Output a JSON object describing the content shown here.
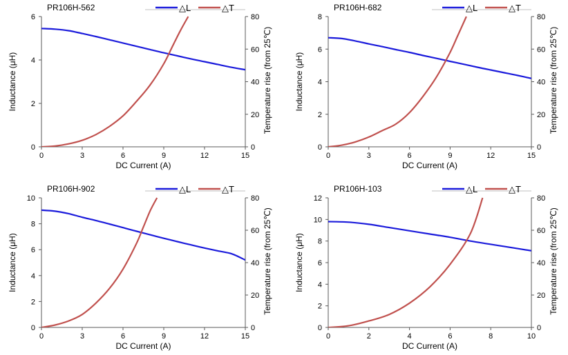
{
  "colors": {
    "inductance": "#1a1adb",
    "temperature": "#c0504d",
    "axis": "#595959",
    "frame": "#bfbfbf"
  },
  "legend": {
    "inductance_label": "△L",
    "temperature_label": "△T"
  },
  "chart_data": [
    {
      "type": "line",
      "title": "PR106H-562",
      "xlabel": "DC Current (A)",
      "ylabel": "Inductance (μH)",
      "y2label": "Temperature rise (from 25℃)",
      "xlim": [
        0,
        15
      ],
      "ylim": [
        0,
        6
      ],
      "y2lim": [
        0,
        80
      ],
      "xticks": [
        "0",
        "3",
        "6",
        "9",
        "12",
        "15"
      ],
      "yticks": [
        "0",
        "2",
        "4",
        "6"
      ],
      "y2ticks": [
        "0",
        "20",
        "40",
        "60",
        "80"
      ],
      "series": [
        {
          "name": "△L",
          "axis": "left",
          "x": [
            0,
            1,
            2,
            3,
            4,
            5,
            6,
            7,
            8,
            9,
            10,
            11,
            12,
            13,
            14,
            15
          ],
          "y": [
            5.45,
            5.42,
            5.35,
            5.22,
            5.08,
            4.93,
            4.78,
            4.63,
            4.48,
            4.33,
            4.19,
            4.05,
            3.92,
            3.79,
            3.66,
            3.55
          ]
        },
        {
          "name": "△T",
          "axis": "right",
          "x": [
            0,
            1,
            2,
            3,
            4,
            5,
            6,
            7,
            8,
            9,
            9.6,
            10.2,
            10.8
          ],
          "y": [
            0,
            0.5,
            1.8,
            4,
            7.5,
            12.5,
            19,
            28,
            38,
            51,
            61,
            71,
            80
          ]
        }
      ]
    },
    {
      "type": "line",
      "title": "PR106H-682",
      "xlabel": "DC Current (A)",
      "ylabel": "Inductance (μH)",
      "y2label": "Temperature rise (from 25℃)",
      "xlim": [
        0,
        15
      ],
      "ylim": [
        0,
        8
      ],
      "y2lim": [
        0,
        80
      ],
      "xticks": [
        "0",
        "3",
        "6",
        "9",
        "12",
        "15"
      ],
      "yticks": [
        "0",
        "2",
        "4",
        "6",
        "8"
      ],
      "y2ticks": [
        "0",
        "20",
        "40",
        "60",
        "80"
      ],
      "series": [
        {
          "name": "△L",
          "axis": "left",
          "x": [
            0,
            1,
            2,
            3,
            4,
            5,
            6,
            7,
            8,
            9,
            10,
            11,
            12,
            13,
            14,
            15
          ],
          "y": [
            6.7,
            6.65,
            6.5,
            6.32,
            6.15,
            5.97,
            5.8,
            5.61,
            5.43,
            5.25,
            5.07,
            4.89,
            4.72,
            4.55,
            4.38,
            4.2
          ]
        },
        {
          "name": "△T",
          "axis": "right",
          "x": [
            0,
            1,
            2,
            3,
            4,
            5,
            6,
            7,
            8,
            9,
            9.6,
            10.2
          ],
          "y": [
            0,
            1,
            3,
            6,
            10,
            14,
            21,
            31,
            43,
            58,
            69,
            80
          ]
        }
      ]
    },
    {
      "type": "line",
      "title": "PR106H-902",
      "xlabel": "DC Current (A)",
      "ylabel": "Inductance (μH)",
      "y2label": "Temperature rise (from 25℃)",
      "xlim": [
        0,
        15
      ],
      "ylim": [
        0,
        10
      ],
      "y2lim": [
        0,
        80
      ],
      "xticks": [
        "0",
        "3",
        "6",
        "9",
        "12",
        "15"
      ],
      "yticks": [
        "0",
        "2",
        "4",
        "6",
        "8",
        "10"
      ],
      "y2ticks": [
        "0",
        "20",
        "40",
        "60",
        "80"
      ],
      "series": [
        {
          "name": "△L",
          "axis": "left",
          "x": [
            0,
            1,
            2,
            3,
            4,
            5,
            6,
            7,
            8,
            9,
            10,
            11,
            12,
            13,
            14,
            15
          ],
          "y": [
            9.05,
            8.97,
            8.78,
            8.5,
            8.25,
            7.98,
            7.7,
            7.42,
            7.15,
            6.88,
            6.62,
            6.37,
            6.13,
            5.9,
            5.68,
            5.2
          ]
        },
        {
          "name": "△T",
          "axis": "right",
          "x": [
            0,
            1,
            2,
            3,
            4,
            5,
            6,
            7,
            7.5,
            8,
            8.5
          ],
          "y": [
            0,
            1.5,
            4,
            8,
            15,
            24,
            36,
            52,
            62,
            72,
            80
          ]
        }
      ]
    },
    {
      "type": "line",
      "title": "PR106H-103",
      "xlabel": "DC Current (A)",
      "ylabel": "Inductance (μH)",
      "y2label": "Temperature rise (from 25℃)",
      "xlim": [
        0,
        10
      ],
      "ylim": [
        0,
        12
      ],
      "y2lim": [
        0,
        80
      ],
      "xticks": [
        "0",
        "2",
        "4",
        "6",
        "8",
        "10"
      ],
      "yticks": [
        "0",
        "2",
        "4",
        "6",
        "8",
        "10",
        "12"
      ],
      "y2ticks": [
        "0",
        "20",
        "40",
        "60",
        "80"
      ],
      "series": [
        {
          "name": "△L",
          "axis": "left",
          "x": [
            0,
            1,
            2,
            3,
            4,
            5,
            6,
            7,
            8,
            9,
            10
          ],
          "y": [
            9.8,
            9.75,
            9.55,
            9.25,
            8.95,
            8.65,
            8.35,
            8.0,
            7.7,
            7.4,
            7.1
          ]
        },
        {
          "name": "△T",
          "axis": "right",
          "x": [
            0,
            1,
            2,
            3,
            4,
            5,
            6,
            7,
            7.6
          ],
          "y": [
            0,
            1,
            4,
            8,
            15,
            25,
            39,
            58,
            80
          ]
        }
      ]
    }
  ]
}
